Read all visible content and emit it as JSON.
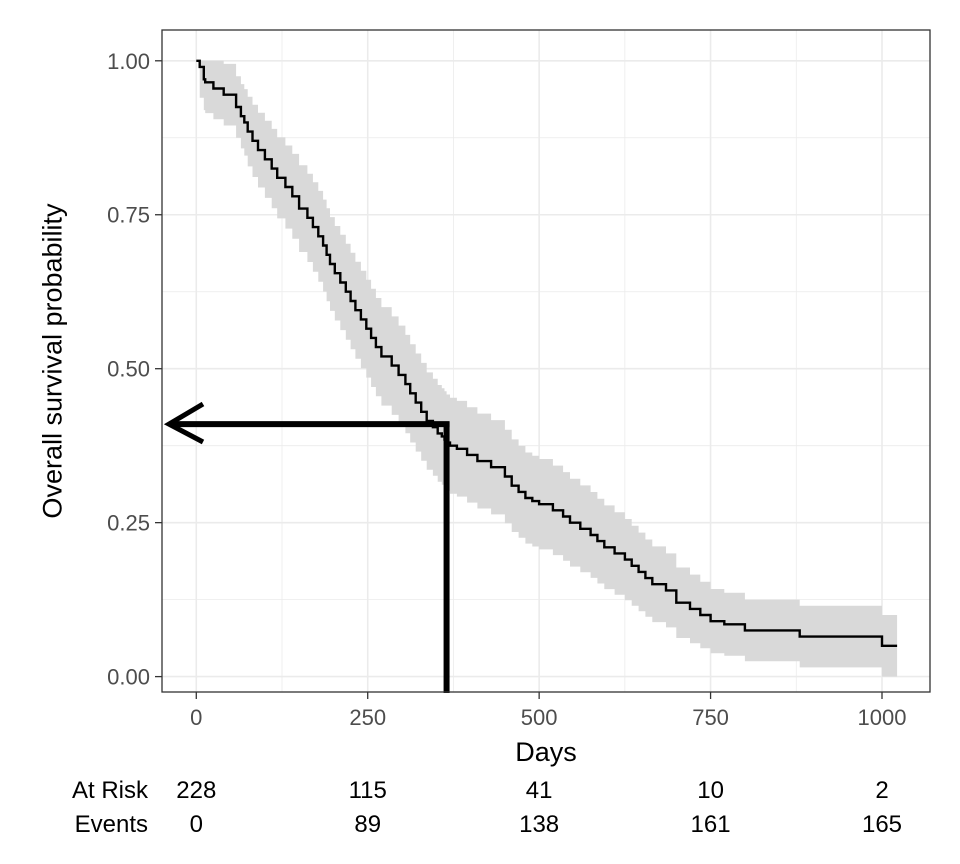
{
  "chart_data": {
    "type": "line",
    "title": "",
    "xlabel": "Days",
    "ylabel": "Overall survival probability",
    "xlim": [
      -50,
      1070
    ],
    "ylim": [
      -0.025,
      1.05
    ],
    "x_ticks": [
      0,
      250,
      500,
      750,
      1000
    ],
    "x_tick_labels": [
      "0",
      "250",
      "500",
      "750",
      "1000"
    ],
    "y_ticks": [
      0,
      0.25,
      0.5,
      0.75,
      1
    ],
    "y_tick_labels": [
      "0.00",
      "0.25",
      "0.50",
      "0.75",
      "1.00"
    ],
    "grid": true,
    "legend": "none",
    "colors": {
      "line": "#000000",
      "band": "#d9d9d9",
      "grid": "#ebebeb",
      "panel_border": "#333333"
    },
    "series": [
      {
        "values_x": [
          0,
          5,
          11,
          13,
          25,
          40,
          58,
          65,
          70,
          75,
          82,
          90,
          100,
          110,
          118,
          130,
          140,
          150,
          162,
          170,
          178,
          185,
          190,
          195,
          202,
          210,
          218,
          225,
          232,
          240,
          248,
          255,
          262,
          270,
          285,
          295,
          305,
          312,
          320,
          328,
          336,
          345,
          352,
          358,
          362,
          365,
          370,
          380,
          395,
          410,
          430,
          450,
          460,
          470,
          480,
          490,
          500,
          520,
          535,
          545,
          560,
          575,
          585,
          595,
          610,
          625,
          635,
          645,
          655,
          665,
          685,
          700,
          720,
          735,
          750,
          770,
          800,
          880,
          1000,
          1022
        ],
        "values_y": [
          1.0,
          0.99,
          0.97,
          0.965,
          0.955,
          0.945,
          0.925,
          0.91,
          0.9,
          0.885,
          0.87,
          0.855,
          0.84,
          0.825,
          0.81,
          0.795,
          0.78,
          0.76,
          0.745,
          0.73,
          0.715,
          0.7,
          0.685,
          0.67,
          0.655,
          0.64,
          0.625,
          0.61,
          0.595,
          0.58,
          0.565,
          0.55,
          0.535,
          0.52,
          0.505,
          0.49,
          0.475,
          0.46,
          0.445,
          0.43,
          0.415,
          0.405,
          0.395,
          0.39,
          0.385,
          0.38,
          0.375,
          0.37,
          0.36,
          0.35,
          0.34,
          0.325,
          0.31,
          0.3,
          0.29,
          0.285,
          0.28,
          0.27,
          0.26,
          0.25,
          0.24,
          0.23,
          0.22,
          0.21,
          0.2,
          0.19,
          0.18,
          0.17,
          0.16,
          0.15,
          0.14,
          0.12,
          0.11,
          0.1,
          0.09,
          0.085,
          0.075,
          0.065,
          0.05,
          0.05
        ]
      }
    ],
    "annotation": {
      "x": 365,
      "y": 0.41
    },
    "risk_table": {
      "labels": [
        "At Risk",
        "Events"
      ],
      "times": [
        0,
        250,
        500,
        750,
        1000
      ],
      "at_risk": [
        "228",
        "115",
        "41",
        "10",
        "2"
      ],
      "events": [
        "0",
        "89",
        "138",
        "161",
        "165"
      ]
    }
  }
}
